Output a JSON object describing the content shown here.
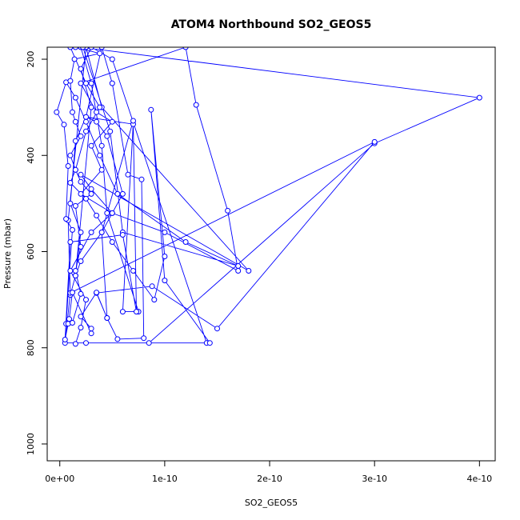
{
  "chart_data": {
    "type": "line",
    "title": "ATOM4 Northbound SO2_GEOS5",
    "xlabel": "SO2_GEOS5",
    "ylabel": "Pressure (mbar)",
    "xlim": [
      -1.2e-11,
      4.15e-10
    ],
    "ylim": [
      1035,
      175
    ],
    "y_inverted": true,
    "x_ticks": [
      0,
      1e-10,
      2e-10,
      3e-10,
      4e-10
    ],
    "x_tick_labels": [
      "0e+00",
      "1e-10",
      "2e-10",
      "3e-10",
      "4e-10"
    ],
    "y_ticks": [
      200,
      400,
      600,
      800,
      1000
    ],
    "y_tick_labels": [
      "200",
      "400",
      "600",
      "800",
      "1000"
    ],
    "grid": false,
    "legend": "none",
    "series": [
      {
        "style": "line-with-open-circles",
        "color": "#0000ff",
        "points": [
          [
            1.5e-11,
            792
          ],
          [
            2e-11,
            758
          ],
          [
            2.5e-11,
            700
          ],
          [
            1e-11,
            640
          ],
          [
            3e-11,
            560
          ],
          [
            5e-11,
            520
          ],
          [
            2e-11,
            480
          ],
          [
            4e-11,
            430
          ],
          [
            3e-11,
            380
          ],
          [
            5e-11,
            330
          ],
          [
            3.5e-11,
            310
          ],
          [
            2e-11,
            250
          ],
          [
            1.2e-10,
            175
          ],
          [
            1.3e-10,
            295
          ],
          [
            1.6e-10,
            515
          ],
          [
            1.7e-10,
            640
          ],
          [
            1e-10,
            560
          ],
          [
            5e-11,
            520
          ],
          [
            3e-11,
            470
          ],
          [
            2e-11,
            440
          ],
          [
            1.8e-10,
            640
          ],
          [
            4e-11,
            300
          ],
          [
            2.5e-11,
            175
          ],
          [
            8e-12,
            535
          ],
          [
            1e-11,
            690
          ],
          [
            1.5e-11,
            650
          ],
          [
            2e-11,
            560
          ],
          [
            1e-11,
            500
          ],
          [
            1.5e-11,
            370
          ],
          [
            2.5e-11,
            320
          ],
          [
            7e-11,
            335
          ],
          [
            6e-11,
            725
          ],
          [
            7.5e-11,
            725
          ],
          [
            4.5e-11,
            520
          ],
          [
            4e-11,
            380
          ],
          [
            3e-11,
            250
          ],
          [
            2e-11,
            175
          ],
          [
            4e-10,
            280
          ],
          [
            3e-10,
            375
          ],
          [
            8.5e-11,
            790
          ],
          [
            1.4e-10,
            790
          ],
          [
            5e-11,
            200
          ],
          [
            3e-11,
            175
          ],
          [
            2e-11,
            220
          ],
          [
            3e-11,
            300
          ],
          [
            1.5e-11,
            650
          ],
          [
            2e-11,
            620
          ],
          [
            4e-11,
            560
          ],
          [
            6e-11,
            480
          ],
          [
            4.5e-11,
            360
          ],
          [
            3.5e-11,
            330
          ],
          [
            2.5e-11,
            320
          ],
          [
            4e-11,
            175
          ],
          [
            5e-11,
            250
          ],
          [
            6.5e-11,
            440
          ],
          [
            7.8e-11,
            450
          ],
          [
            8e-11,
            780
          ],
          [
            5.5e-11,
            782
          ],
          [
            4.5e-11,
            738
          ],
          [
            3.5e-11,
            686
          ],
          [
            8.8e-11,
            672
          ],
          [
            1.5e-10,
            760
          ],
          [
            3e-10,
            372
          ],
          [
            1e-11,
            686
          ],
          [
            5e-12,
            790
          ],
          [
            2.5e-11,
            790
          ],
          [
            1.43e-10,
            790
          ],
          [
            1e-10,
            660
          ],
          [
            8.7e-11,
            305
          ],
          [
            1e-10,
            610
          ],
          [
            9e-11,
            700
          ],
          [
            7e-11,
            640
          ],
          [
            5e-11,
            580
          ],
          [
            3.5e-11,
            525
          ],
          [
            2.5e-11,
            490
          ],
          [
            1e-11,
            457
          ],
          [
            1.5e-11,
            430
          ],
          [
            2.5e-11,
            350
          ],
          [
            3.8e-11,
            300
          ],
          [
            2.5e-11,
            250
          ],
          [
            1e-11,
            175
          ],
          [
            2.2e-11,
            175
          ],
          [
            4.8e-11,
            350
          ],
          [
            6e-11,
            560
          ],
          [
            1.7e-10,
            630
          ],
          [
            1.2e-10,
            580
          ],
          [
            5.5e-11,
            480
          ],
          [
            3.8e-11,
            400
          ],
          [
            2.5e-11,
            330
          ],
          [
            1.5e-11,
            280
          ],
          [
            6e-12,
            248
          ],
          [
            -3e-12,
            310
          ],
          [
            4e-12,
            336
          ],
          [
            8e-12,
            422
          ],
          [
            6e-12,
            532
          ],
          [
            1.2e-11,
            555
          ],
          [
            6e-12,
            750
          ],
          [
            9e-12,
            740
          ],
          [
            1.2e-11,
            685
          ],
          [
            3e-11,
            770
          ],
          [
            3e-11,
            760
          ],
          [
            2e-11,
            735
          ],
          [
            3.5e-11,
            685
          ],
          [
            4.5e-11,
            738
          ],
          [
            4e-11,
            560
          ],
          [
            7e-11,
            328
          ],
          [
            7.3e-11,
            725
          ],
          [
            6e-11,
            565
          ],
          [
            1e-11,
            580
          ],
          [
            5e-12,
            783
          ],
          [
            8e-12,
            750
          ],
          [
            1.2e-11,
            748
          ],
          [
            2e-11,
            688
          ],
          [
            1.5e-11,
            640
          ],
          [
            2e-11,
            590
          ],
          [
            1.5e-11,
            505
          ],
          [
            3e-11,
            480
          ],
          [
            2e-11,
            455
          ],
          [
            1.5e-11,
            430
          ],
          [
            1e-11,
            400
          ],
          [
            2e-11,
            360
          ],
          [
            1.5e-11,
            330
          ],
          [
            1.2e-11,
            310
          ],
          [
            1e-11,
            245
          ],
          [
            1.4e-11,
            200
          ],
          [
            3.8e-11,
            188
          ],
          [
            1.5e-11,
            175
          ]
        ]
      }
    ]
  }
}
